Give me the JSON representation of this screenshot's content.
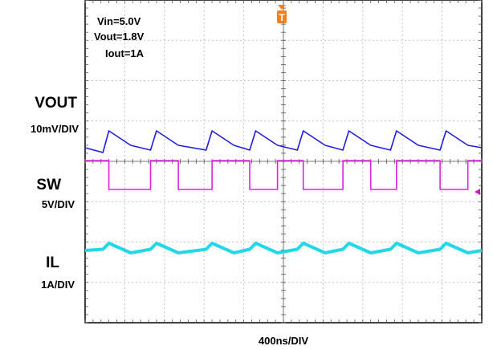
{
  "chart_data": {
    "type": "line",
    "settings": [
      "Vin=5.0V",
      "Vout=1.8V",
      "Iout=1A"
    ],
    "trigger_marker": "T",
    "timebase": "400ns/DIV",
    "time_divisions": 10,
    "voltage_divisions": 8,
    "x": [
      0.0,
      0.45,
      0.6,
      1.15,
      1.65,
      1.8,
      2.35,
      3.05,
      3.2,
      3.75,
      4.15,
      4.3,
      4.85,
      5.35,
      5.5,
      6.05,
      6.5,
      6.65,
      7.2,
      7.7,
      7.85,
      8.4,
      8.95,
      9.1,
      9.65,
      10.0
    ],
    "series": [
      {
        "name": "VOUT",
        "scale": "10mV/DIV",
        "color": "#1f1fdc",
        "values": [
          -1.3,
          -1.5,
          -0.6,
          -1.2,
          -1.4,
          -0.6,
          -1.2,
          -1.4,
          -0.6,
          -1.2,
          -1.4,
          -0.6,
          -1.2,
          -1.4,
          -0.6,
          -1.2,
          -1.4,
          -0.6,
          -1.2,
          -1.4,
          -0.6,
          -1.2,
          -1.4,
          -0.6,
          -1.2,
          -1.3
        ]
      },
      {
        "name": "SW",
        "scale": "5V/DIV",
        "color": "#e020e0",
        "values": [
          1.2,
          1.2,
          0.0,
          0.0,
          1.2,
          1.2,
          0.0,
          0.0,
          1.2,
          1.2,
          0.0,
          0.0,
          1.2,
          1.2,
          0.0,
          0.0,
          1.2,
          1.2,
          0.0,
          0.0,
          1.2,
          1.2,
          0.0,
          0.0,
          1.2,
          1.2
        ]
      },
      {
        "name": "IL",
        "scale": "1A/DIV",
        "color": "#22d8e8",
        "values": [
          0.0,
          0.05,
          0.3,
          -0.1,
          0.05,
          0.3,
          -0.1,
          0.05,
          0.3,
          -0.1,
          0.05,
          0.3,
          -0.1,
          0.05,
          0.3,
          -0.1,
          0.05,
          0.3,
          -0.1,
          0.05,
          0.3,
          -0.1,
          0.05,
          0.3,
          -0.1,
          0.0
        ]
      }
    ],
    "grid": true
  }
}
